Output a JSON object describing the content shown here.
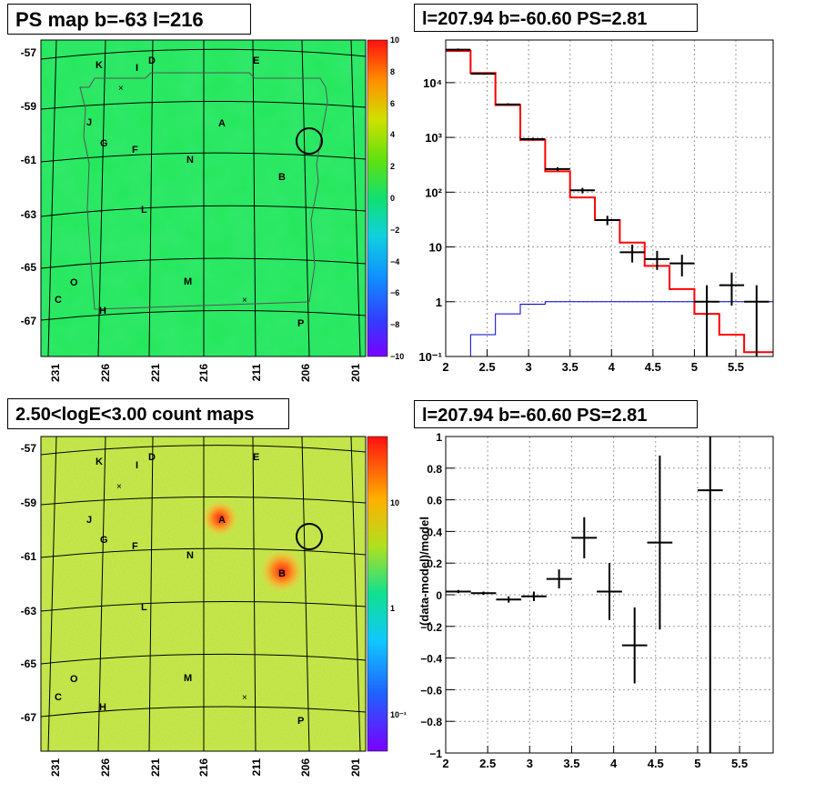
{
  "panels": {
    "ps_map": {
      "title": "PS map b=-63 l=216",
      "lat_ticks": [
        "-57",
        "-59",
        "-61",
        "-63",
        "-65",
        "-67"
      ],
      "lon_ticks": [
        "231",
        "226",
        "221",
        "216",
        "211",
        "206",
        "201"
      ],
      "colorbar_ticks": [
        "10",
        "8",
        "6",
        "4",
        "2",
        "0",
        "−2",
        "−4",
        "−6",
        "−8",
        "−10"
      ],
      "sources": [
        {
          "label": "K"
        },
        {
          "label": "I"
        },
        {
          "label": "D"
        },
        {
          "label": "E"
        },
        {
          "label": "J"
        },
        {
          "label": "A"
        },
        {
          "label": "G"
        },
        {
          "label": "F"
        },
        {
          "label": "N"
        },
        {
          "label": "B"
        },
        {
          "label": "L"
        },
        {
          "label": "O"
        },
        {
          "label": "M"
        },
        {
          "label": "C"
        },
        {
          "label": "H"
        },
        {
          "label": "P"
        }
      ],
      "colors": {
        "background": "#22e85a",
        "ring": "#000000"
      }
    },
    "count_map": {
      "title": "2.50<logE<3.00 count maps",
      "lat_ticks": [
        "-57",
        "-59",
        "-61",
        "-63",
        "-65",
        "-67"
      ],
      "lon_ticks": [
        "231",
        "226",
        "221",
        "216",
        "211",
        "206",
        "201"
      ],
      "colorbar_ticks": [
        "10",
        "1",
        "10⁻¹"
      ],
      "sources": [
        {
          "label": "K"
        },
        {
          "label": "I"
        },
        {
          "label": "D"
        },
        {
          "label": "E"
        },
        {
          "label": "J"
        },
        {
          "label": "A"
        },
        {
          "label": "G"
        },
        {
          "label": "F"
        },
        {
          "label": "N"
        },
        {
          "label": "B"
        },
        {
          "label": "L"
        },
        {
          "label": "O"
        },
        {
          "label": "M"
        },
        {
          "label": "C"
        },
        {
          "label": "H"
        },
        {
          "label": "P"
        }
      ],
      "colors": {
        "background": "#b8e040",
        "hot": "#e83020"
      }
    }
  },
  "chart_data": [
    {
      "type": "line",
      "title": "l=207.94 b=-60.60 PS=2.81",
      "xlabel": "",
      "ylabel": "",
      "xlim": [
        2,
        5.95
      ],
      "ylim": [
        0.1,
        60000
      ],
      "yscale": "log",
      "grid": true,
      "x_ticks": [
        "2",
        "2.5",
        "3",
        "3.5",
        "4",
        "4.5",
        "5",
        "5.5"
      ],
      "y_ticks": [
        "10⁻¹",
        "1",
        "10",
        "10²",
        "10³",
        "10⁴"
      ],
      "bin_edges": [
        2.0,
        2.3,
        2.6,
        2.9,
        3.2,
        3.5,
        3.8,
        4.1,
        4.4,
        4.7,
        5.0,
        5.3,
        5.6,
        5.95
      ],
      "series": [
        {
          "color": "#ff0000",
          "values": [
            38000,
            15000,
            3900,
            900,
            240,
            80,
            31,
            12,
            4.5,
            1.7,
            0.6,
            0.25,
            0.12
          ]
        },
        {
          "color": "#0000cc",
          "values": [
            0.1,
            0.25,
            0.6,
            0.9,
            1.0,
            1.0,
            1.0,
            1.0,
            1.0,
            1.0,
            1.0,
            1.0,
            1.0
          ]
        }
      ],
      "points": [
        {
          "x": 2.15,
          "y": 40000,
          "ylo": 38000,
          "yhi": 42000
        },
        {
          "x": 2.45,
          "y": 14500,
          "ylo": 14000,
          "yhi": 15000
        },
        {
          "x": 2.75,
          "y": 4000,
          "ylo": 3800,
          "yhi": 4200
        },
        {
          "x": 3.05,
          "y": 930,
          "ylo": 880,
          "yhi": 980
        },
        {
          "x": 3.35,
          "y": 265,
          "ylo": 245,
          "yhi": 285
        },
        {
          "x": 3.65,
          "y": 108,
          "ylo": 95,
          "yhi": 120
        },
        {
          "x": 3.95,
          "y": 31,
          "ylo": 25,
          "yhi": 37
        },
        {
          "x": 4.25,
          "y": 8,
          "ylo": 5.2,
          "yhi": 11
        },
        {
          "x": 4.55,
          "y": 6,
          "ylo": 3.8,
          "yhi": 8.5
        },
        {
          "x": 4.85,
          "y": 5,
          "ylo": 2.9,
          "yhi": 7.2
        },
        {
          "x": 5.15,
          "y": 1,
          "ylo": 0.1,
          "yhi": 2
        },
        {
          "x": 5.45,
          "y": 2,
          "ylo": 0.85,
          "yhi": 3.4
        },
        {
          "x": 5.75,
          "y": 1,
          "ylo": 0.1,
          "yhi": 2
        }
      ]
    },
    {
      "type": "scatter",
      "title": "l=207.94 b=-60.60 PS=2.81",
      "xlabel": "",
      "ylabel": "(data-model)/model",
      "xlim": [
        2,
        5.9
      ],
      "ylim": [
        -1,
        1
      ],
      "grid": true,
      "x_ticks": [
        "2",
        "2.5",
        "3",
        "3.5",
        "4",
        "4.5",
        "5",
        "5.5"
      ],
      "y_ticks": [
        "−1",
        "−0.8",
        "−0.6",
        "−0.4",
        "−0.2",
        "0",
        "0.2",
        "0.4",
        "0.6",
        "0.8",
        "1"
      ],
      "points": [
        {
          "x": 2.15,
          "y": 0.02,
          "err": 0.01
        },
        {
          "x": 2.45,
          "y": 0.01,
          "err": 0.01
        },
        {
          "x": 2.75,
          "y": -0.03,
          "err": 0.02
        },
        {
          "x": 3.05,
          "y": -0.01,
          "err": 0.03
        },
        {
          "x": 3.35,
          "y": 0.1,
          "err": 0.06
        },
        {
          "x": 3.65,
          "y": 0.36,
          "err": 0.13
        },
        {
          "x": 3.95,
          "y": 0.02,
          "err": 0.18
        },
        {
          "x": 4.25,
          "y": -0.32,
          "err": 0.24
        },
        {
          "x": 4.55,
          "y": 0.33,
          "err": 0.55
        },
        {
          "x": 5.15,
          "y": 0.66,
          "err": 1.7
        }
      ]
    }
  ]
}
